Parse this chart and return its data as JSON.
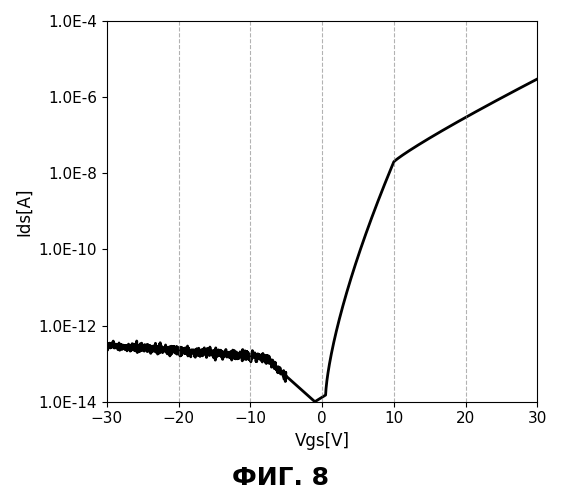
{
  "title": "ФИГ. 8",
  "xlabel": "Vgs[V]",
  "ylabel": "Ids[A]",
  "xlim": [
    -30,
    30
  ],
  "ylim_log": [
    -14,
    -4
  ],
  "xticks": [
    -30,
    -20,
    -10,
    0,
    10,
    20,
    30
  ],
  "yticks_vals": [
    1e-14,
    1e-12,
    1e-10,
    1e-08,
    1e-06,
    0.0001
  ],
  "yticks_labels": [
    "1.0E-14",
    "1.0E-12",
    "1.0E-10",
    "1.0E-08",
    "1.0E-06",
    "1.0E-04"
  ],
  "grid_x": [
    -20,
    -10,
    0,
    10,
    20
  ],
  "line_color": "#000000",
  "background_color": "#ffffff",
  "title_fontsize": 18,
  "axis_fontsize": 12,
  "tick_fontsize": 11
}
